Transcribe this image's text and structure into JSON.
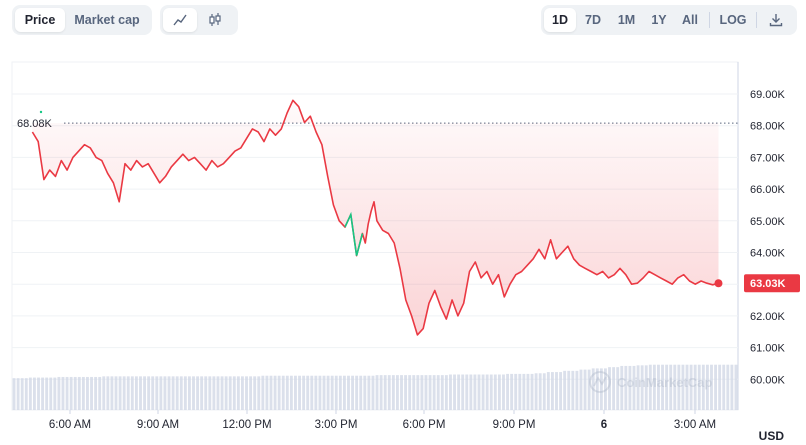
{
  "toolbar": {
    "value_tabs": [
      {
        "label": "Price",
        "active": true
      },
      {
        "label": "Market cap",
        "active": false
      }
    ],
    "chart_types": [
      {
        "icon": "line-chart-icon",
        "active": true
      },
      {
        "icon": "candlestick-chart-icon",
        "active": false
      }
    ],
    "ranges": [
      {
        "label": "1D",
        "active": true
      },
      {
        "label": "7D",
        "active": false
      },
      {
        "label": "1M",
        "active": false
      },
      {
        "label": "1Y",
        "active": false
      },
      {
        "label": "All",
        "active": false
      }
    ],
    "log_label": "LOG",
    "download_icon": "download-icon"
  },
  "currency_label": "USD",
  "watermark": "CoinMarketCap",
  "colors": {
    "down": "#ea3943",
    "up": "#16c784",
    "axis_text": "#222531",
    "grid": "#eff2f5",
    "volume": "#cfd6e4"
  },
  "chart_data": {
    "type": "line",
    "title": "",
    "xlabel": "",
    "ylabel": "",
    "ylim": [
      59.8,
      70.0
    ],
    "y_unit": "K",
    "y_ticks": [
      "69.00K",
      "68.00K",
      "67.00K",
      "66.00K",
      "65.00K",
      "64.00K",
      "63.00K",
      "62.00K",
      "61.00K",
      "60.00K"
    ],
    "x_ticks": [
      "6:00 AM",
      "9:00 AM",
      "12:00 PM",
      "3:00 PM",
      "6:00 PM",
      "9:00 PM",
      "6",
      "3:00 AM"
    ],
    "reference_value": 68.08,
    "reference_label": "68.08K",
    "current_value": 63.03,
    "current_label": "63.03K",
    "series": [
      {
        "x": [
          4.7,
          4.9,
          5.1,
          5.3,
          5.5,
          5.7,
          5.9,
          6.1,
          6.3,
          6.5,
          6.7,
          6.9,
          7.1,
          7.3,
          7.5,
          7.7,
          7.9,
          8.1,
          8.3,
          8.5,
          8.7,
          8.9,
          9.1,
          9.3,
          9.5,
          9.7,
          9.9,
          10.1,
          10.3,
          10.5,
          10.7,
          10.9,
          11.1,
          11.3,
          11.5,
          11.7,
          11.9,
          12.1,
          12.3,
          12.5,
          12.7,
          12.9,
          13.1,
          13.3,
          13.5,
          13.7,
          13.9,
          14.1,
          14.3,
          14.5,
          14.7,
          14.9,
          15.1,
          15.3,
          15.5,
          15.7,
          15.9,
          16.1,
          16.2,
          16.3,
          16.4,
          16.5,
          16.6,
          16.8,
          17.0,
          17.2,
          17.4,
          17.6,
          17.8,
          18.0,
          18.2,
          18.4,
          18.6,
          18.8,
          19.0,
          19.2,
          19.4,
          19.6,
          19.8,
          20.0,
          20.2,
          20.4,
          20.6,
          20.8,
          21.0,
          21.2,
          21.4,
          21.6,
          21.8,
          22.0,
          22.2,
          22.4,
          22.6,
          22.8,
          23.0,
          23.2,
          23.4,
          23.6,
          23.8,
          24.0,
          24.2,
          24.4,
          24.6,
          24.8,
          25.0,
          25.2,
          25.4,
          25.6,
          25.8,
          26.0,
          26.2,
          26.4,
          26.6,
          26.8,
          27.0,
          27.2,
          27.4,
          27.6,
          27.8,
          28.0,
          28.2,
          28.4
        ],
        "y": [
          67.8,
          67.5,
          66.3,
          66.6,
          66.4,
          66.9,
          66.6,
          67.0,
          67.2,
          67.4,
          67.3,
          67.0,
          66.9,
          66.5,
          66.2,
          65.6,
          66.8,
          66.6,
          66.9,
          66.7,
          66.8,
          66.5,
          66.2,
          66.4,
          66.7,
          66.9,
          67.1,
          66.9,
          67.0,
          66.8,
          66.6,
          66.9,
          66.7,
          66.8,
          67.0,
          67.2,
          67.3,
          67.6,
          67.9,
          67.8,
          67.5,
          67.9,
          67.7,
          67.9,
          68.4,
          68.8,
          68.6,
          68.1,
          68.3,
          67.8,
          67.4,
          66.4,
          65.5,
          65.0,
          64.8,
          65.2,
          63.9,
          64.6,
          64.3,
          64.9,
          65.3,
          65.6,
          65.0,
          64.7,
          64.6,
          64.3,
          63.5,
          62.5,
          62.0,
          61.4,
          61.6,
          62.4,
          62.8,
          62.3,
          61.9,
          62.5,
          62.0,
          62.4,
          63.4,
          63.7,
          63.2,
          63.4,
          63.0,
          63.3,
          62.6,
          63.0,
          63.3,
          63.4,
          63.6,
          63.8,
          64.1,
          63.8,
          64.4,
          63.8,
          64.0,
          64.2,
          63.8,
          63.6,
          63.5,
          63.4,
          63.3,
          63.4,
          63.2,
          63.3,
          63.5,
          63.3,
          63.0,
          63.03,
          63.2,
          63.4,
          63.3,
          63.2,
          63.1,
          63.0,
          63.2,
          63.3,
          63.1,
          63.0,
          63.1,
          63.03,
          62.98,
          63.03
        ]
      }
    ],
    "up_segment_x_range": [
      15.5,
      16.1
    ],
    "volume_relative": [
      0.52,
      0.53,
      0.53,
      0.54,
      0.54,
      0.54,
      0.55,
      0.55,
      0.55,
      0.55,
      0.55,
      0.55,
      0.55,
      0.55,
      0.55,
      0.55,
      0.55,
      0.56,
      0.56,
      0.56,
      0.56,
      0.56,
      0.56,
      0.56,
      0.56,
      0.57,
      0.57,
      0.57,
      0.57,
      0.57,
      0.58,
      0.58,
      0.58,
      0.58,
      0.59,
      0.59,
      0.6,
      0.62,
      0.64,
      0.66,
      0.68,
      0.7,
      0.72,
      0.73,
      0.74,
      0.74,
      0.74,
      0.74,
      0.74,
      0.74
    ],
    "grid": true,
    "legend": "none"
  }
}
